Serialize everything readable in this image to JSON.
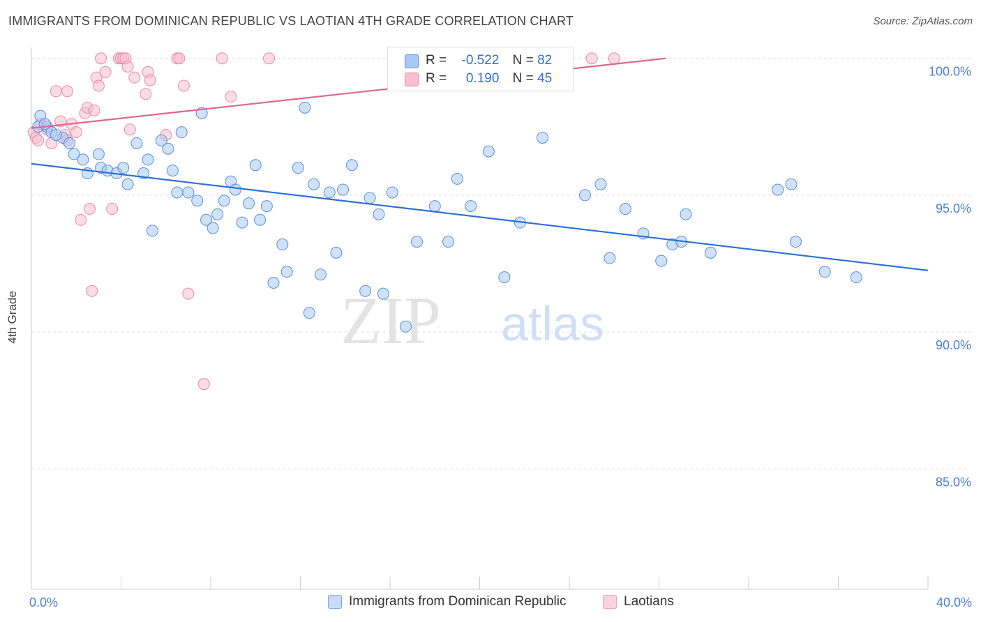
{
  "title": "IMMIGRANTS FROM DOMINICAN REPUBLIC VS LAOTIAN 4TH GRADE CORRELATION CHART",
  "source": "Source: ZipAtlas.com",
  "watermark": {
    "zip": "ZIP",
    "atlas": "atlas"
  },
  "legend_top": [
    {
      "r_label": "R =",
      "r_value": "-0.522",
      "n_label": "N =",
      "n_value": "82"
    },
    {
      "r_label": "R =",
      "r_value": "0.190",
      "n_label": "N =",
      "n_value": "45"
    }
  ],
  "chart_data": {
    "type": "scatter",
    "title": "IMMIGRANTS FROM DOMINICAN REPUBLIC VS LAOTIAN 4TH GRADE CORRELATION CHART",
    "xlabel": "",
    "ylabel": "4th Grade",
    "xlim": [
      0,
      40
    ],
    "ylim": [
      80.6,
      100.4
    ],
    "x_tick_labels": [
      "0.0%",
      "40.0%"
    ],
    "y_ticks": [
      100,
      95,
      90,
      85
    ],
    "y_tick_labels": [
      "100.0%",
      "95.0%",
      "90.0%",
      "85.0%"
    ],
    "grid": true,
    "legend_position": "bottom",
    "colors": {
      "blue_fill": "#a9c8f5",
      "blue_stroke": "#5a8fd8",
      "blue_line": "#2a6fd6",
      "pink_fill": "#f7bfd0",
      "pink_stroke": "#e889a8",
      "pink_line": "#e0668f",
      "axis_label": "#4a7fd4",
      "grid": "#dddddd"
    },
    "series": [
      {
        "name": "Immigrants from Dominican Republic",
        "color": "#a9c8f5",
        "R": -0.522,
        "N": 82,
        "trend": {
          "x": [
            0,
            40
          ],
          "y": [
            96.15,
            92.25
          ]
        },
        "points": [
          [
            0.3,
            97.5
          ],
          [
            0.4,
            97.9
          ],
          [
            0.7,
            97.5
          ],
          [
            0.9,
            97.3
          ],
          [
            1.4,
            97.1
          ],
          [
            1.7,
            96.9
          ],
          [
            1.9,
            96.5
          ],
          [
            2.3,
            96.3
          ],
          [
            2.5,
            95.8
          ],
          [
            3.0,
            96.5
          ],
          [
            3.1,
            96.0
          ],
          [
            3.4,
            95.9
          ],
          [
            3.8,
            95.8
          ],
          [
            4.1,
            96.0
          ],
          [
            4.3,
            95.4
          ],
          [
            4.7,
            96.9
          ],
          [
            5.0,
            95.8
          ],
          [
            5.2,
            96.3
          ],
          [
            5.4,
            93.7
          ],
          [
            5.8,
            97.0
          ],
          [
            6.1,
            96.7
          ],
          [
            6.3,
            95.9
          ],
          [
            6.5,
            95.1
          ],
          [
            6.7,
            97.3
          ],
          [
            7.0,
            95.1
          ],
          [
            7.4,
            94.8
          ],
          [
            7.6,
            98.0
          ],
          [
            7.8,
            94.1
          ],
          [
            8.1,
            93.8
          ],
          [
            8.3,
            94.3
          ],
          [
            8.6,
            94.8
          ],
          [
            8.9,
            95.5
          ],
          [
            9.1,
            95.2
          ],
          [
            9.4,
            94.0
          ],
          [
            9.7,
            94.7
          ],
          [
            10.0,
            96.1
          ],
          [
            10.2,
            94.1
          ],
          [
            10.5,
            94.6
          ],
          [
            10.8,
            91.8
          ],
          [
            11.2,
            93.2
          ],
          [
            11.4,
            92.2
          ],
          [
            11.9,
            96.0
          ],
          [
            12.2,
            98.2
          ],
          [
            12.4,
            90.7
          ],
          [
            12.6,
            95.4
          ],
          [
            12.9,
            92.1
          ],
          [
            13.3,
            95.1
          ],
          [
            13.6,
            92.9
          ],
          [
            13.9,
            95.2
          ],
          [
            14.3,
            96.1
          ],
          [
            14.9,
            91.5
          ],
          [
            15.1,
            94.9
          ],
          [
            15.5,
            94.3
          ],
          [
            15.7,
            91.4
          ],
          [
            16.1,
            95.1
          ],
          [
            16.7,
            90.2
          ],
          [
            17.2,
            93.3
          ],
          [
            18.0,
            94.6
          ],
          [
            18.6,
            93.3
          ],
          [
            19.0,
            95.6
          ],
          [
            19.6,
            94.6
          ],
          [
            20.4,
            96.6
          ],
          [
            21.1,
            92.0
          ],
          [
            21.8,
            94.0
          ],
          [
            22.8,
            97.1
          ],
          [
            24.7,
            95.0
          ],
          [
            25.4,
            95.4
          ],
          [
            25.8,
            92.7
          ],
          [
            26.5,
            94.5
          ],
          [
            27.3,
            93.6
          ],
          [
            28.1,
            92.6
          ],
          [
            28.6,
            93.2
          ],
          [
            29.0,
            93.3
          ],
          [
            29.2,
            94.3
          ],
          [
            30.3,
            92.9
          ],
          [
            33.3,
            95.2
          ],
          [
            33.9,
            95.4
          ],
          [
            34.1,
            93.3
          ],
          [
            35.4,
            92.2
          ],
          [
            36.8,
            92.0
          ],
          [
            0.6,
            97.6
          ],
          [
            1.1,
            97.2
          ]
        ]
      },
      {
        "name": "Laotians",
        "color": "#f7bfd0",
        "R": 0.19,
        "N": 45,
        "trend": {
          "x": [
            0,
            28.3
          ],
          "y": [
            97.45,
            100.0
          ]
        },
        "points": [
          [
            0.1,
            97.3
          ],
          [
            0.2,
            97.1
          ],
          [
            0.4,
            97.6
          ],
          [
            0.7,
            97.4
          ],
          [
            0.9,
            96.9
          ],
          [
            1.1,
            98.8
          ],
          [
            1.3,
            97.7
          ],
          [
            1.5,
            97.2
          ],
          [
            1.6,
            98.8
          ],
          [
            1.8,
            97.6
          ],
          [
            2.0,
            97.3
          ],
          [
            2.2,
            94.1
          ],
          [
            2.4,
            98.0
          ],
          [
            2.5,
            98.2
          ],
          [
            2.6,
            94.5
          ],
          [
            2.7,
            91.5
          ],
          [
            2.8,
            98.1
          ],
          [
            2.9,
            99.3
          ],
          [
            3.0,
            99.0
          ],
          [
            3.1,
            100.0
          ],
          [
            3.3,
            99.5
          ],
          [
            3.6,
            94.5
          ],
          [
            3.9,
            100.0
          ],
          [
            4.0,
            100.0
          ],
          [
            4.1,
            100.0
          ],
          [
            4.2,
            100.0
          ],
          [
            4.3,
            99.7
          ],
          [
            4.4,
            97.4
          ],
          [
            4.6,
            99.3
          ],
          [
            5.1,
            98.7
          ],
          [
            5.2,
            99.5
          ],
          [
            5.3,
            99.2
          ],
          [
            6.0,
            97.2
          ],
          [
            6.5,
            100.0
          ],
          [
            6.6,
            100.0
          ],
          [
            6.8,
            99.0
          ],
          [
            7.0,
            91.4
          ],
          [
            7.7,
            88.1
          ],
          [
            8.5,
            100.0
          ],
          [
            8.9,
            98.6
          ],
          [
            10.6,
            100.0
          ],
          [
            25.0,
            100.0
          ],
          [
            26.0,
            100.0
          ],
          [
            0.3,
            97.0
          ],
          [
            1.6,
            97.0
          ]
        ]
      }
    ]
  }
}
